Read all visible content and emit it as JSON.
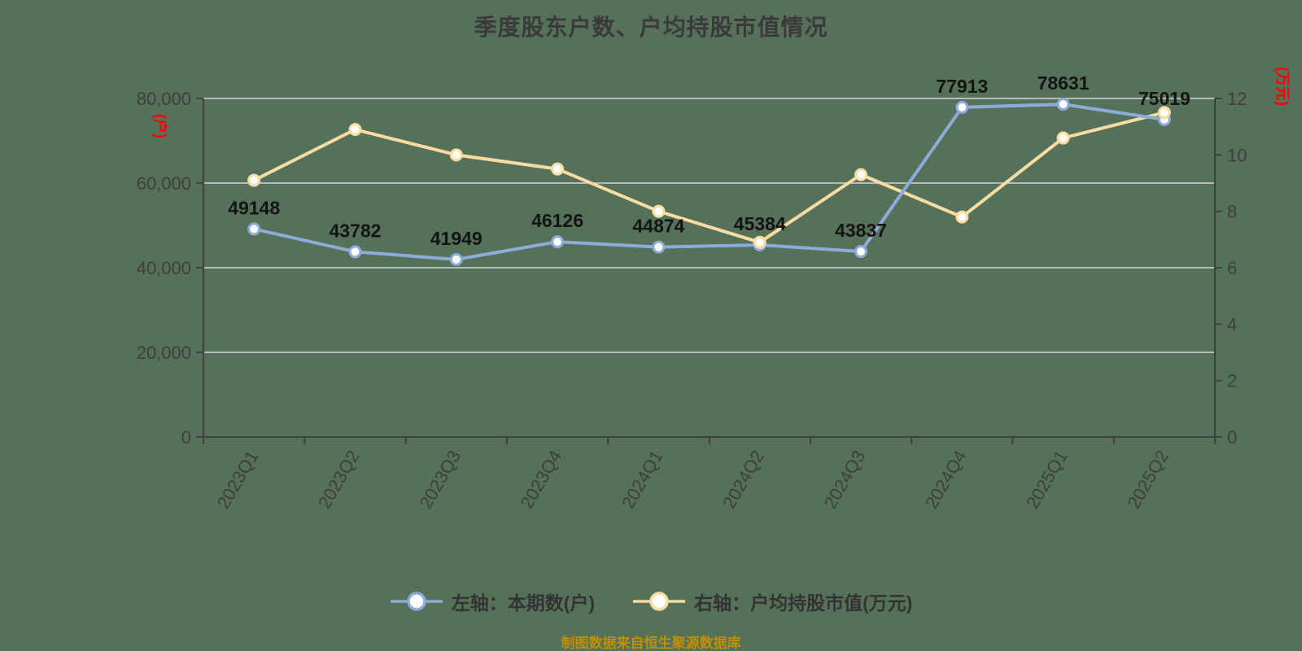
{
  "page": {
    "background_color": "#56715A"
  },
  "chart_data": {
    "type": "line",
    "title": "季度股东户数、户均持股市值情况",
    "source_note": "制图数据来自恒生聚源数据库",
    "categories": [
      "2023Q1",
      "2023Q2",
      "2023Q3",
      "2023Q4",
      "2024Q1",
      "2024Q2",
      "2024Q3",
      "2024Q4",
      "2025Q1",
      "2025Q2"
    ],
    "series": [
      {
        "name": "左轴：本期数(户)",
        "axis": "left",
        "color": "#8CABD9",
        "marker_fill": "#FDFEFF",
        "show_data_labels": true,
        "values": [
          49148,
          43782,
          41949,
          46126,
          44874,
          45384,
          43837,
          77913,
          78631,
          75019
        ]
      },
      {
        "name": "右轴：户均持股市值(万元)",
        "axis": "right",
        "color": "#F8DCA4",
        "marker_fill": "#FFFEF8",
        "show_data_labels": false,
        "values": [
          9.1,
          10.9,
          10.0,
          9.5,
          8.0,
          6.9,
          9.3,
          7.8,
          10.6,
          11.5
        ]
      }
    ],
    "left_axis": {
      "unit_label": "(户)",
      "unit_color": "#FF0000",
      "min": 0,
      "max": 80000,
      "tick_labels": [
        "0",
        "20,000",
        "40,000",
        "60,000",
        "80,000"
      ]
    },
    "right_axis": {
      "unit_label": "(万元)",
      "unit_color": "#FF0000",
      "min": 0,
      "max": 12,
      "tick_labels": [
        "0",
        "2",
        "4",
        "6",
        "8",
        "10",
        "12"
      ]
    },
    "grid": true,
    "legend_position": "bottom",
    "style": {
      "grid_color": "#D6D6D6",
      "axis_color": "#404040",
      "tick_text_color": "#3F3F3F",
      "data_label_color": "#141414",
      "title_color": "#3A3A3A",
      "legend_text_color": "#333333",
      "source_note_color": "#BF8F00"
    }
  }
}
